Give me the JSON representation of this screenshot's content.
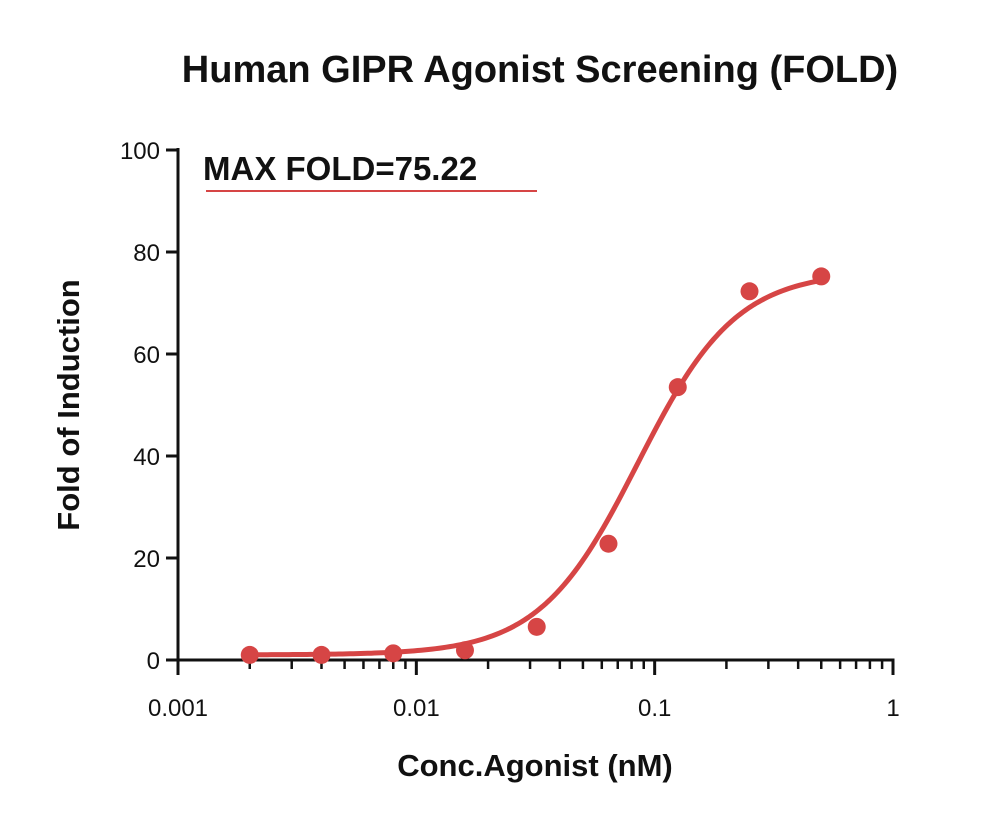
{
  "chart_data": {
    "type": "scatter",
    "title": "Human GIPR Agonist Screening (FOLD)",
    "xlabel": "Conc.Agonist (nM)",
    "ylabel": "Fold of Induction",
    "x_scale": "log",
    "xlim": [
      0.001,
      1
    ],
    "ylim": [
      0,
      100
    ],
    "x_ticks": [
      0.001,
      0.01,
      0.1,
      1
    ],
    "x_tick_labels": [
      "0.001",
      "0.01",
      "0.1",
      "1"
    ],
    "y_ticks": [
      0,
      20,
      40,
      60,
      80,
      100
    ],
    "y_tick_labels": [
      "0",
      "20",
      "40",
      "60",
      "80",
      "100"
    ],
    "grid": false,
    "legend": "none",
    "annotation": "MAX FOLD=75.22",
    "series": [
      {
        "color": "#d64545",
        "fit": "four-parameter logistic curve",
        "points": [
          {
            "x": 0.002,
            "y": 1.0
          },
          {
            "x": 0.004,
            "y": 1.0
          },
          {
            "x": 0.008,
            "y": 1.3
          },
          {
            "x": 0.016,
            "y": 1.9
          },
          {
            "x": 0.032,
            "y": 6.5
          },
          {
            "x": 0.064,
            "y": 22.8
          },
          {
            "x": 0.125,
            "y": 53.5
          },
          {
            "x": 0.25,
            "y": 72.3
          },
          {
            "x": 0.5,
            "y": 75.22
          }
        ]
      }
    ]
  }
}
